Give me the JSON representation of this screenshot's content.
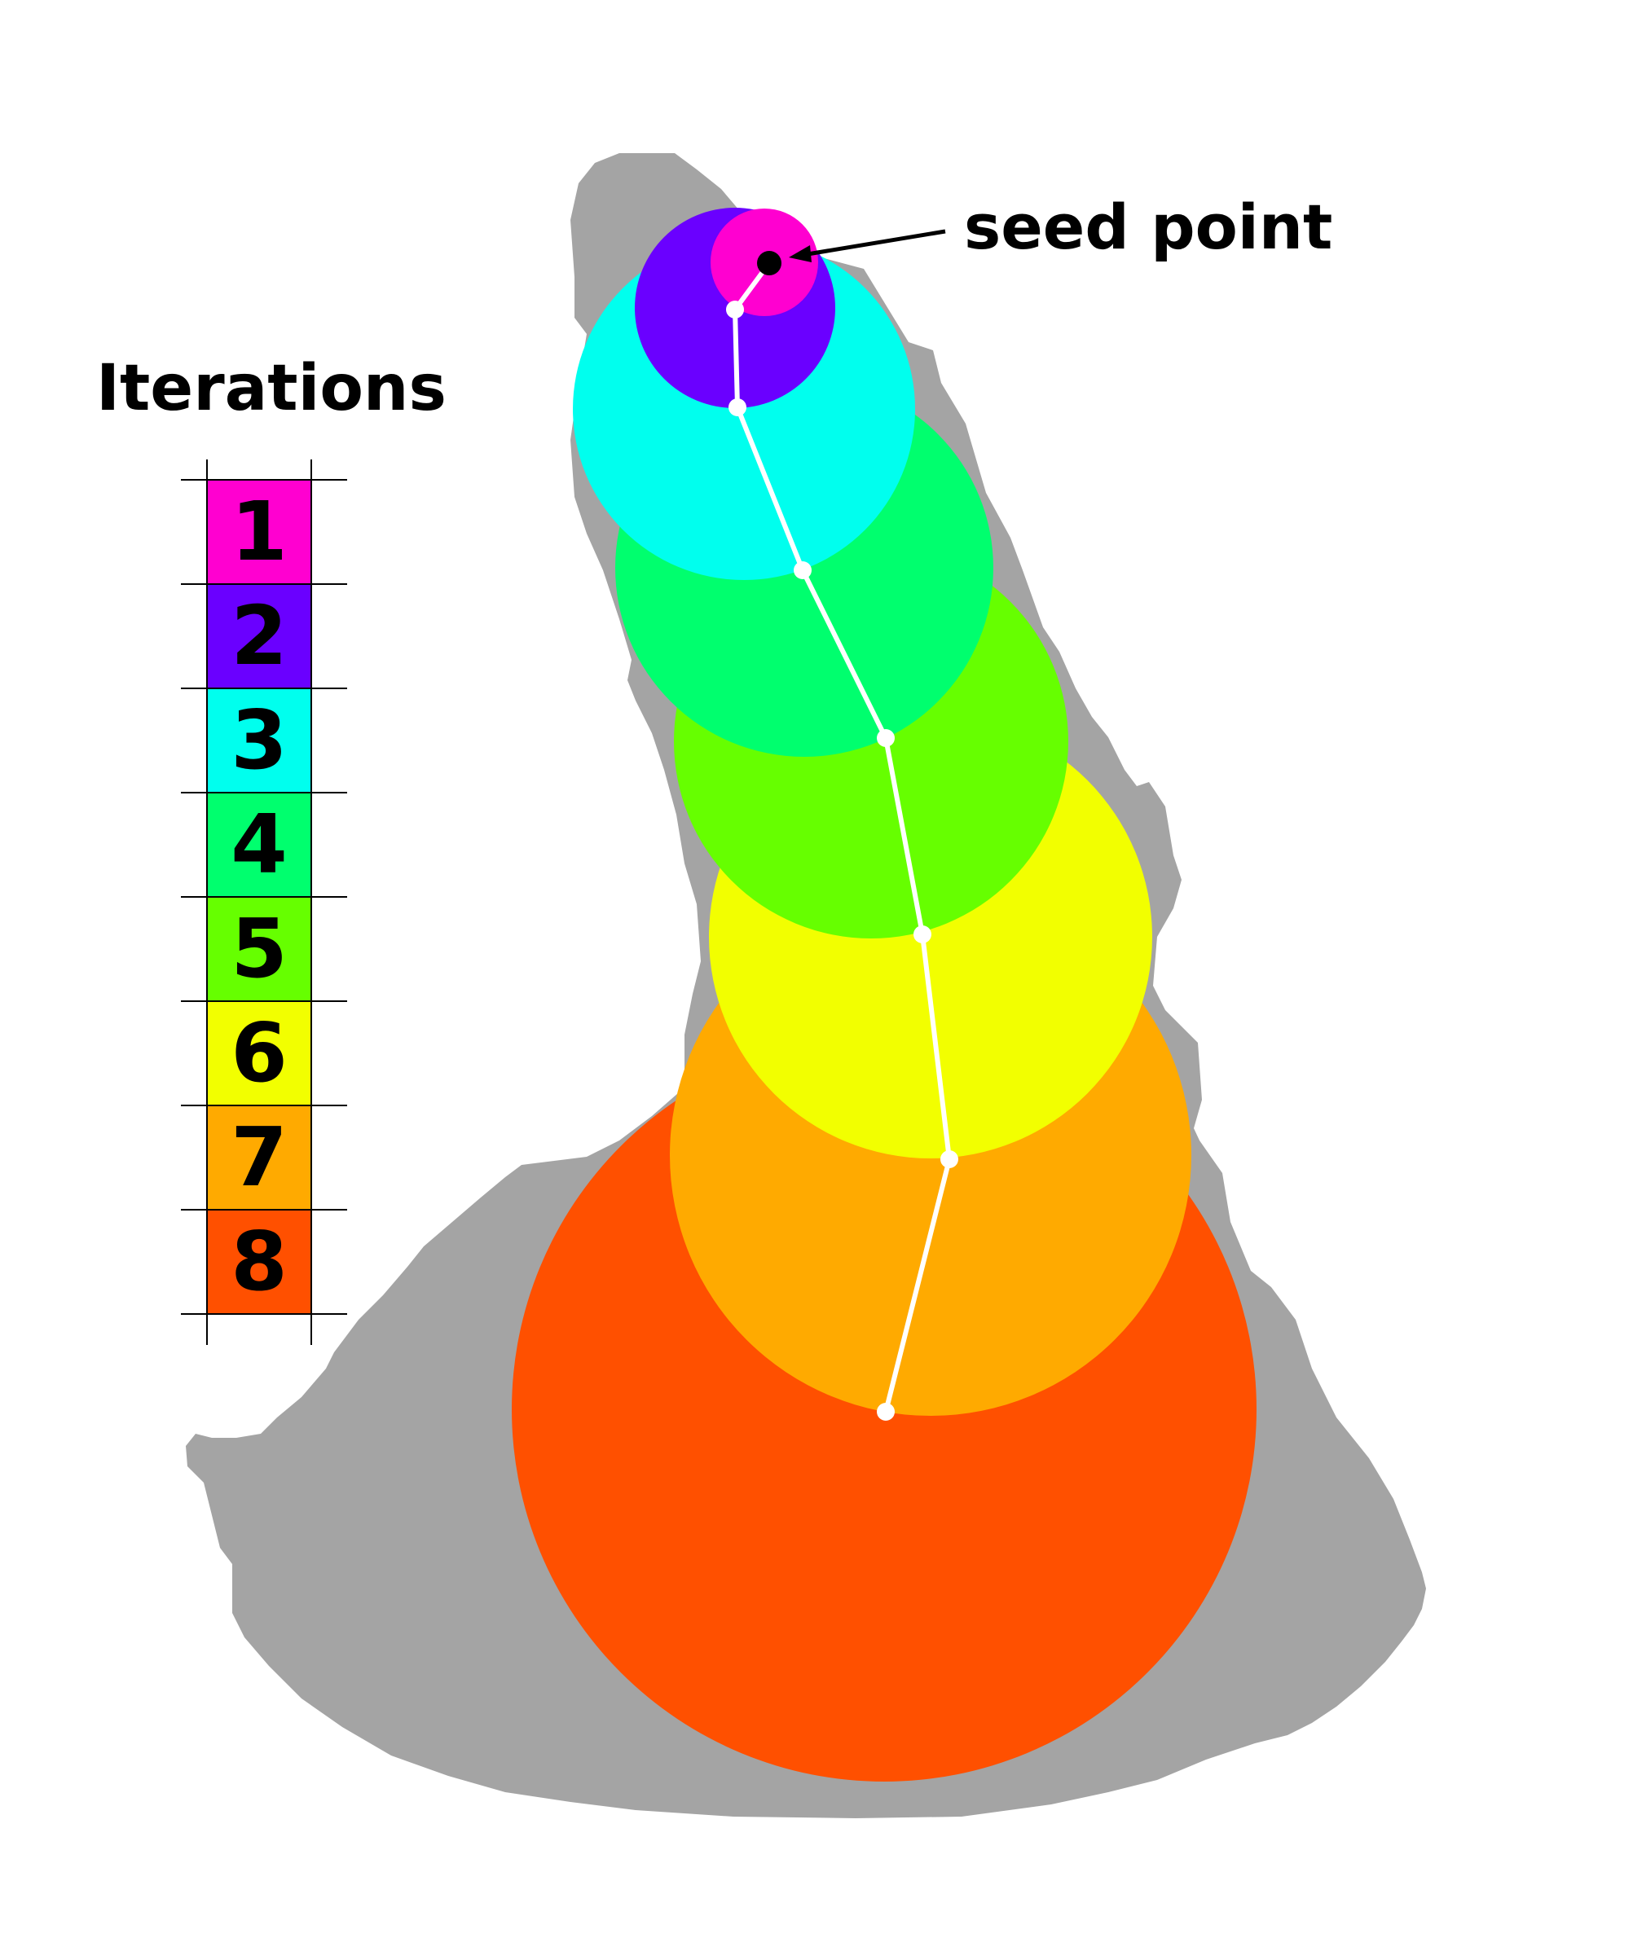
{
  "title": "Iterations",
  "annotation": {
    "label": "seed point"
  },
  "legend": {
    "entries": [
      {
        "label": "1",
        "color": "#ff00d0"
      },
      {
        "label": "2",
        "color": "#6a00ff"
      },
      {
        "label": "3",
        "color": "#00ffee"
      },
      {
        "label": "4",
        "color": "#00ff6e"
      },
      {
        "label": "5",
        "color": "#66ff00"
      },
      {
        "label": "6",
        "color": "#f2ff00"
      },
      {
        "label": "7",
        "color": "#ffaa00"
      },
      {
        "label": "8",
        "color": "#ff5000"
      }
    ]
  },
  "colors": {
    "region": "#a4a4a4",
    "path": "#ffffff",
    "seed": "#000000"
  }
}
